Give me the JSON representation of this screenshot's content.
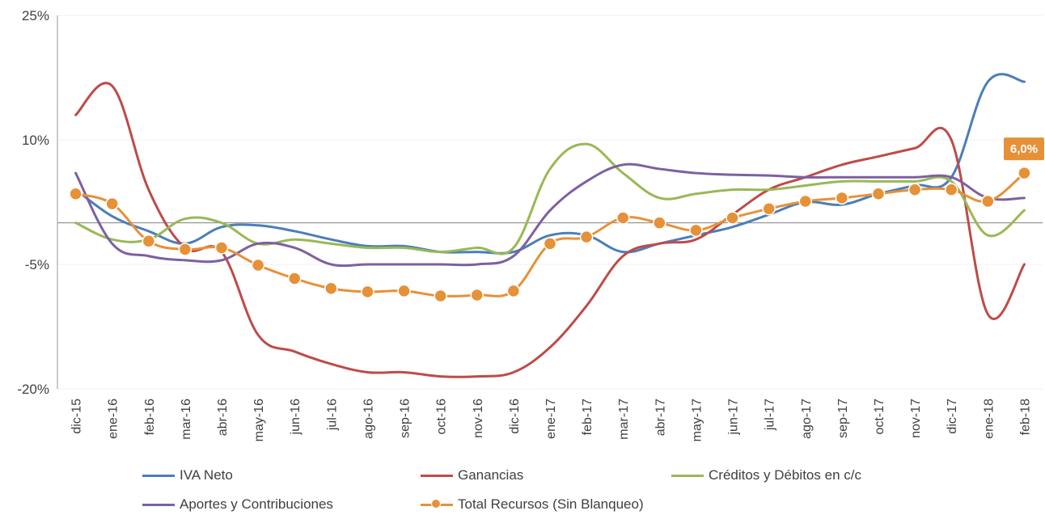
{
  "chart_data": {
    "type": "line",
    "categories": [
      "dic-15",
      "ene-16",
      "feb-16",
      "mar-16",
      "abr-16",
      "may-16",
      "jun-16",
      "jul-16",
      "ago-16",
      "sep-16",
      "oct-16",
      "nov-16",
      "dic-16",
      "ene-17",
      "feb-17",
      "mar-17",
      "abr-17",
      "may-17",
      "jun-17",
      "jul-17",
      "ago-17",
      "sep-17",
      "oct-17",
      "nov-17",
      "dic-17",
      "ene-18",
      "feb-18"
    ],
    "ylim": [
      -20,
      25
    ],
    "yticks": [
      25,
      10,
      -5,
      -20
    ],
    "ytick_labels": [
      "25%",
      "10%",
      "-5%",
      "-20%"
    ],
    "zero_line": true,
    "grid": true,
    "legend_position": "bottom",
    "series": [
      {
        "name": "IVA Neto",
        "color": "#4A7EBB",
        "markers": false,
        "values": [
          4.0,
          0.8,
          -1.0,
          -2.5,
          -0.5,
          -0.3,
          -1.0,
          -2.0,
          -2.8,
          -2.8,
          -3.5,
          -3.5,
          -3.5,
          -1.5,
          -1.5,
          -3.5,
          -2.5,
          -1.5,
          -0.5,
          1.0,
          2.5,
          2.2,
          3.5,
          4.5,
          5.5,
          17.0,
          17.0
        ]
      },
      {
        "name": "Ganancias",
        "color": "#BE4B48",
        "markers": false,
        "values": [
          13.0,
          16.5,
          4.0,
          -3.0,
          -3.5,
          -13.5,
          -15.5,
          -17.0,
          -18.0,
          -18.0,
          -18.5,
          -18.5,
          -18.0,
          -15.0,
          -10.0,
          -4.0,
          -2.5,
          -2.0,
          1.0,
          4.0,
          5.5,
          7.0,
          8.0,
          9.0,
          10.0,
          -11.0,
          -5.0
        ]
      },
      {
        "name": "Créditos y Débitos en c/c",
        "color": "#98B954",
        "markers": false,
        "values": [
          0.0,
          -2.0,
          -2.0,
          0.5,
          0.0,
          -2.5,
          -2.0,
          -2.5,
          -3.0,
          -3.0,
          -3.5,
          -3.0,
          -3.0,
          6.5,
          9.5,
          6.0,
          3.0,
          3.5,
          4.0,
          4.0,
          4.5,
          5.0,
          5.0,
          5.0,
          5.0,
          -1.5,
          1.5
        ]
      },
      {
        "name": "Aportes y Contribuciones",
        "color": "#7D60A0",
        "markers": false,
        "values": [
          6.0,
          -2.5,
          -4.0,
          -4.5,
          -4.5,
          -2.5,
          -3.0,
          -5.0,
          -5.0,
          -5.0,
          -5.0,
          -5.0,
          -4.0,
          1.5,
          5.0,
          7.0,
          6.5,
          6.0,
          5.8,
          5.7,
          5.5,
          5.5,
          5.5,
          5.5,
          5.5,
          3.0,
          3.0
        ]
      },
      {
        "name": "Total Recursos (Sin Blanqueo)",
        "color": "#E69138",
        "markers": true,
        "values": [
          3.5,
          2.3,
          -2.2,
          -3.2,
          -3.0,
          -5.1,
          -6.7,
          -7.9,
          -8.3,
          -8.2,
          -8.8,
          -8.7,
          -8.2,
          -2.5,
          -1.7,
          0.6,
          0.0,
          -0.9,
          0.6,
          1.7,
          2.6,
          3.0,
          3.5,
          4.0,
          4.0,
          2.6,
          6.0
        ]
      }
    ],
    "annotations": [
      {
        "series": "Total Recursos (Sin Blanqueo)",
        "category": "feb-18",
        "text": "6,0%",
        "color": "#E69138"
      }
    ]
  }
}
